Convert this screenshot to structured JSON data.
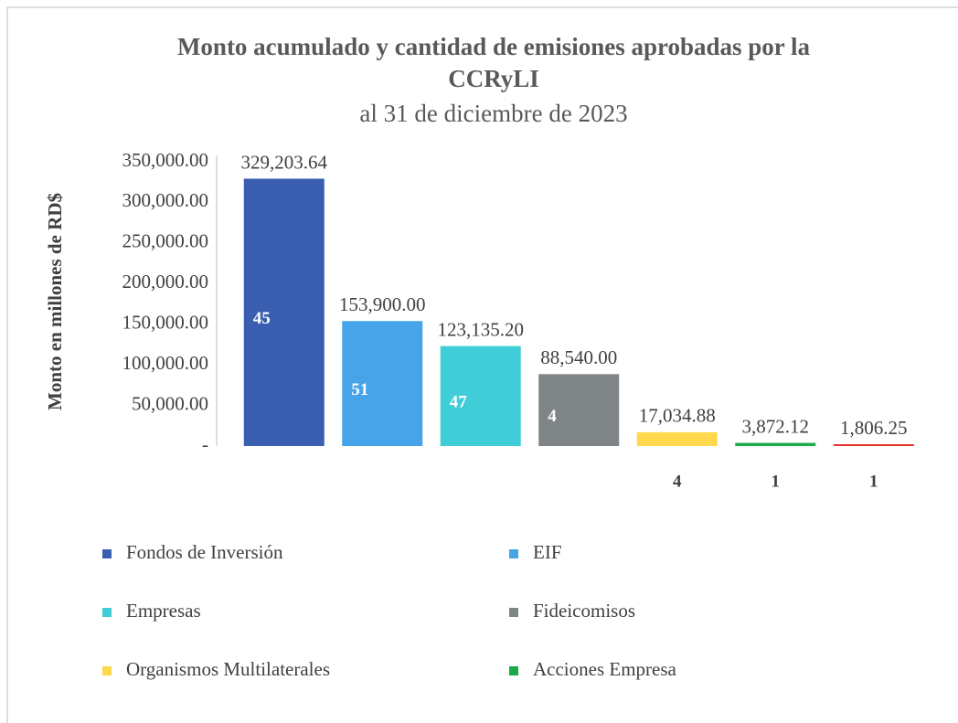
{
  "chart_data": {
    "type": "bar",
    "title": [
      "Monto acumulado y cantidad de emisiones aprobadas por la",
      "CCRyLI"
    ],
    "subtitle": "al 31 de diciembre de 2023",
    "y_label": "Monto en millones de RD$",
    "categories": [
      null,
      null,
      null,
      null,
      null,
      null,
      null
    ],
    "values": [
      329203.64,
      153900.0,
      123135.2,
      88540.0,
      17034.88,
      3872.12,
      1806.25
    ],
    "value_labels": [
      "329,203.64",
      "153,900.00",
      "123,135.20",
      "88,540.00",
      "17,034.88",
      "3,872.12",
      "1,806.25"
    ],
    "counts": [
      45,
      51,
      47,
      4,
      4,
      1,
      1
    ],
    "colors": [
      "#3a5fb0",
      "#47a4e8",
      "#40cdd8",
      "#7f8487",
      "#ffd84d",
      "#1aaa4a",
      "#e8312a"
    ],
    "legend": [
      {
        "name": "Fondos de Inversión",
        "color": "#3a5fb0"
      },
      {
        "name": "EIF",
        "color": "#47a4e8"
      },
      {
        "name": "Empresas",
        "color": "#40cdd8"
      },
      {
        "name": "Fideicomisos",
        "color": "#7f8487"
      },
      {
        "name": "Organismos Multilaterales",
        "color": "#ffd84d"
      },
      {
        "name": "Acciones Empresa",
        "color": "#1aaa4a"
      }
    ],
    "ylim": [
      0,
      350000
    ],
    "yticks": [
      {
        "value": 0,
        "label": "-"
      },
      {
        "value": 50000,
        "label": "50,000.00"
      },
      {
        "value": 100000,
        "label": "100,000.00"
      },
      {
        "value": 150000,
        "label": "150,000.00"
      },
      {
        "value": 200000,
        "label": "200,000.00"
      },
      {
        "value": 250000,
        "label": "250,000.00"
      },
      {
        "value": 300000,
        "label": "300,000.00"
      },
      {
        "value": 350000,
        "label": "350,000.00"
      }
    ],
    "grid": false
  }
}
